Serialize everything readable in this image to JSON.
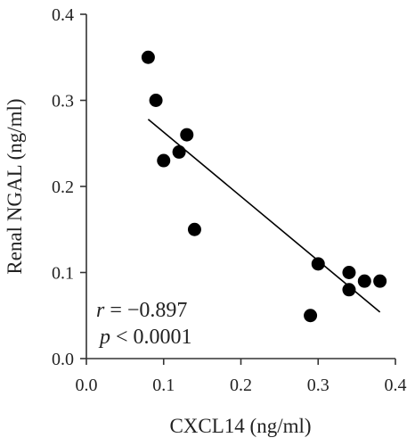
{
  "chart_data": {
    "type": "scatter",
    "xlabel": "CXCL14 (ng/ml)",
    "ylabel": "Renal NGAL (ng/ml)",
    "xlim": [
      0.0,
      0.4
    ],
    "ylim": [
      0.0,
      0.4
    ],
    "xticks": [
      0.0,
      0.1,
      0.2,
      0.3,
      0.4
    ],
    "yticks": [
      0.0,
      0.1,
      0.2,
      0.3,
      0.4
    ],
    "xtick_labels": [
      "0.0",
      "0.1",
      "0.2",
      "0.3",
      "0.4"
    ],
    "ytick_labels": [
      "0.0",
      "0.1",
      "0.2",
      "0.3",
      "0.4"
    ],
    "grid": false,
    "points": [
      {
        "x": 0.08,
        "y": 0.35
      },
      {
        "x": 0.09,
        "y": 0.3
      },
      {
        "x": 0.1,
        "y": 0.23
      },
      {
        "x": 0.12,
        "y": 0.24
      },
      {
        "x": 0.13,
        "y": 0.26
      },
      {
        "x": 0.14,
        "y": 0.15
      },
      {
        "x": 0.29,
        "y": 0.05
      },
      {
        "x": 0.3,
        "y": 0.11
      },
      {
        "x": 0.34,
        "y": 0.1
      },
      {
        "x": 0.34,
        "y": 0.08
      },
      {
        "x": 0.36,
        "y": 0.09
      },
      {
        "x": 0.38,
        "y": 0.09
      }
    ],
    "regression_line": {
      "x": [
        0.08,
        0.38
      ],
      "y": [
        0.278,
        0.054
      ]
    },
    "annotations": {
      "r_symbol": "r",
      "r_value": " = −0.897",
      "p_symbol": "p",
      "p_value": " < 0.0001"
    },
    "colors": {
      "points": "#000000",
      "line": "#000000",
      "axes": "#333333"
    }
  }
}
